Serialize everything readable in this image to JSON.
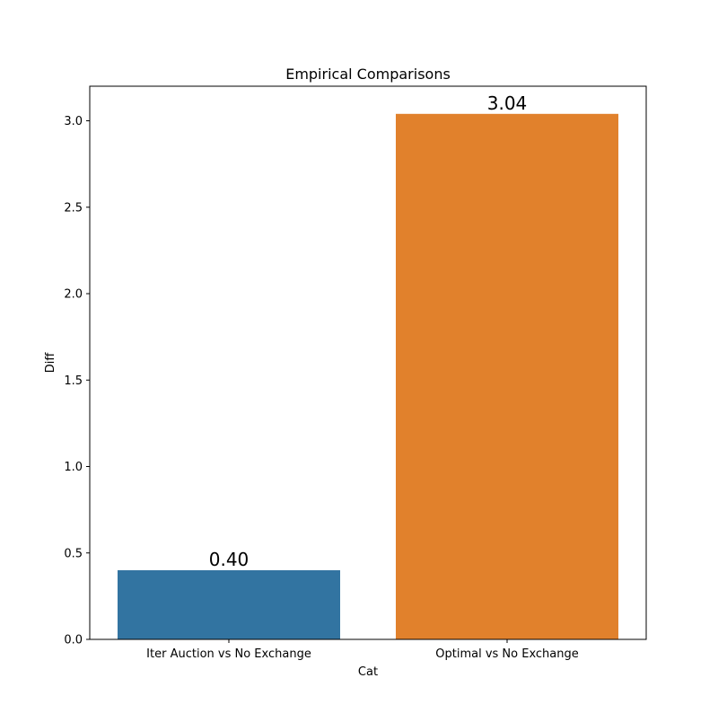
{
  "chart_data": {
    "type": "bar",
    "title": "Empirical Comparisons",
    "xlabel": "Cat",
    "ylabel": "Diff",
    "categories": [
      "Iter Auction vs No Exchange",
      "Optimal vs No Exchange"
    ],
    "values": [
      0.4,
      3.04
    ],
    "value_labels": [
      "0.40",
      "3.04"
    ],
    "colors": [
      "#3274a1",
      "#e1812c"
    ],
    "ylim": [
      0,
      3.2
    ],
    "yticks": [
      0.0,
      0.5,
      1.0,
      1.5,
      2.0,
      2.5,
      3.0
    ],
    "ytick_labels": [
      "0.0",
      "0.5",
      "1.0",
      "1.5",
      "2.0",
      "2.5",
      "3.0"
    ],
    "grid": false,
    "legend": false
  }
}
